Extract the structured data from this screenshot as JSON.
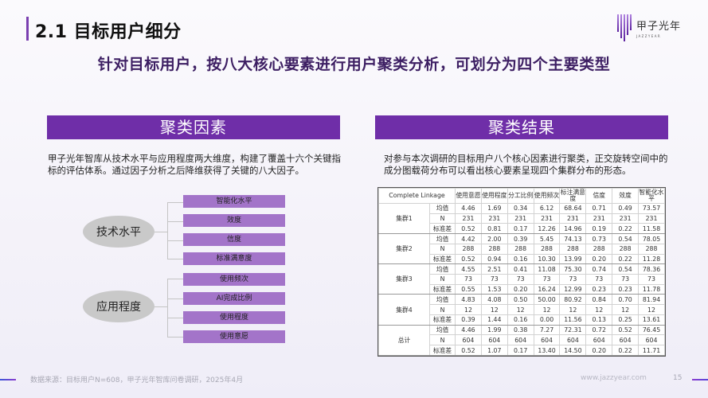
{
  "header": {
    "title": "2.1 目标用户细分",
    "logo_cn": "甲子光年",
    "logo_en": "JAZZYEAR",
    "accent_color": "#7a3fb0"
  },
  "subtitle": "针对目标用户，按八大核心要素进行用户聚类分析，可划分为四个主要类型",
  "left": {
    "section_title": "聚类因素",
    "description": "甲子光年智库从技术水平与应用程度两大维度，构建了覆盖十六个关键指标的评估体系。通过因子分析之后降维获得了关键的八大因子。",
    "groups": [
      {
        "label": "技术水平",
        "items": [
          "智能化水平",
          "效度",
          "信度",
          "标准满意度"
        ]
      },
      {
        "label": "应用程度",
        "items": [
          "使用频次",
          "AI完成比例",
          "使用程度",
          "使用意愿"
        ]
      }
    ]
  },
  "right": {
    "section_title": "聚类结果",
    "description": "对参与本次调研的目标用户八个核心因素进行聚类，正交旋转空间中的成分图载荷分布可以看出核心要素呈现四个集群分布的形态。",
    "table": {
      "headers": [
        "Complete Linkage",
        "使用意愿",
        "使用程度",
        "分工比例",
        "使用频次",
        "标注满意度",
        "信度",
        "效度",
        "智能化水平"
      ],
      "groups": [
        {
          "name": "集群1",
          "rows": [
            {
              "stat": "均值",
              "values": [
                "4.46",
                "1.69",
                "0.34",
                "6.12",
                "68.64",
                "0.71",
                "0.49",
                "73.57"
              ]
            },
            {
              "stat": "N",
              "values": [
                "231",
                "231",
                "231",
                "231",
                "231",
                "231",
                "231",
                "231"
              ]
            },
            {
              "stat": "标准差",
              "values": [
                "0.52",
                "0.81",
                "0.17",
                "12.26",
                "14.96",
                "0.19",
                "0.22",
                "11.58"
              ]
            }
          ]
        },
        {
          "name": "集群2",
          "rows": [
            {
              "stat": "均值",
              "values": [
                "4.42",
                "2.00",
                "0.39",
                "5.45",
                "74.13",
                "0.73",
                "0.54",
                "78.05"
              ]
            },
            {
              "stat": "N",
              "values": [
                "288",
                "288",
                "288",
                "288",
                "288",
                "288",
                "288",
                "288"
              ]
            },
            {
              "stat": "标准差",
              "values": [
                "0.52",
                "0.94",
                "0.16",
                "10.30",
                "13.99",
                "0.20",
                "0.22",
                "11.28"
              ]
            }
          ]
        },
        {
          "name": "集群3",
          "rows": [
            {
              "stat": "均值",
              "values": [
                "4.55",
                "2.51",
                "0.41",
                "11.08",
                "75.30",
                "0.74",
                "0.54",
                "78.36"
              ]
            },
            {
              "stat": "N",
              "values": [
                "73",
                "73",
                "73",
                "73",
                "73",
                "73",
                "73",
                "73"
              ]
            },
            {
              "stat": "标准差",
              "values": [
                "0.55",
                "1.53",
                "0.20",
                "16.24",
                "12.99",
                "0.23",
                "0.23",
                "11.78"
              ]
            }
          ]
        },
        {
          "name": "集群4",
          "rows": [
            {
              "stat": "均值",
              "values": [
                "4.83",
                "4.08",
                "0.50",
                "50.00",
                "80.92",
                "0.84",
                "0.70",
                "81.94"
              ]
            },
            {
              "stat": "N",
              "values": [
                "12",
                "12",
                "12",
                "12",
                "12",
                "12",
                "12",
                "12"
              ]
            },
            {
              "stat": "标准差",
              "values": [
                "0.39",
                "1.44",
                "0.16",
                "0.00",
                "11.56",
                "0.13",
                "0.25",
                "13.61"
              ]
            }
          ]
        },
        {
          "name": "总计",
          "rows": [
            {
              "stat": "均值",
              "values": [
                "4.46",
                "1.99",
                "0.38",
                "7.27",
                "72.31",
                "0.72",
                "0.52",
                "76.45"
              ]
            },
            {
              "stat": "N",
              "values": [
                "604",
                "604",
                "604",
                "604",
                "604",
                "604",
                "604",
                "604"
              ]
            },
            {
              "stat": "标准差",
              "values": [
                "0.52",
                "1.07",
                "0.17",
                "13.40",
                "14.50",
                "0.20",
                "0.22",
                "11.71"
              ]
            }
          ]
        }
      ]
    }
  },
  "footer": {
    "source": "数据来源：目标用户N=608，甲子光年智库问卷调研，2025年4月",
    "url": "www.jazzyear.com",
    "page": "15"
  }
}
